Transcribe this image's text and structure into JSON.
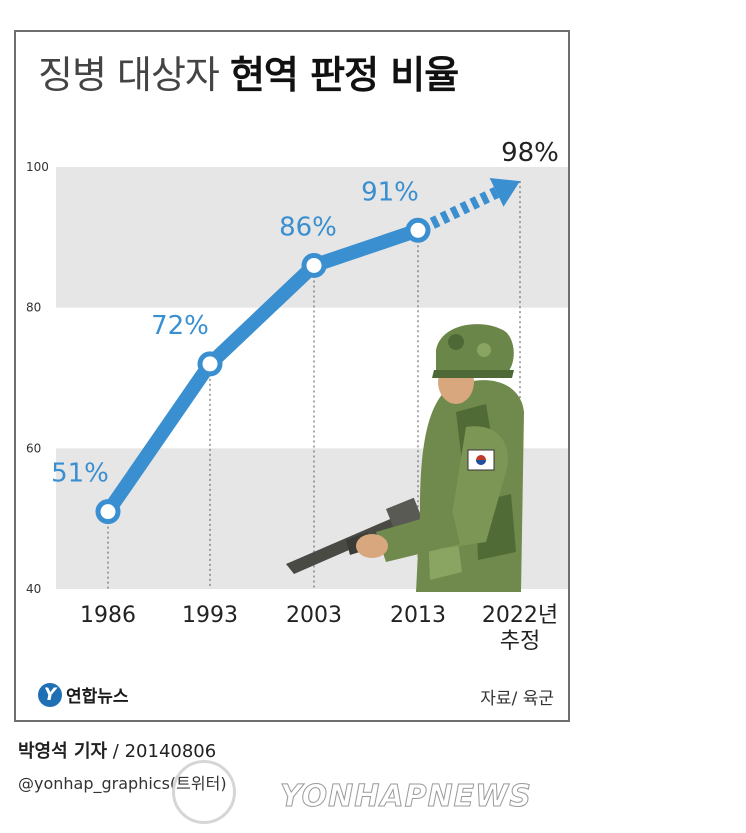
{
  "title_light": "징병 대상자 ",
  "title_bold": "현역 판정 비율",
  "chart_data": {
    "type": "line",
    "x": [
      "1986",
      "1993",
      "2003",
      "2013",
      "2022년 추정"
    ],
    "y": [
      51,
      72,
      86,
      91,
      98
    ],
    "data_labels": [
      "51%",
      "72%",
      "86%",
      "91%",
      "98%"
    ],
    "projected_from_index": 3,
    "ylim": [
      40,
      100
    ],
    "yticks": [
      40,
      60,
      80,
      100
    ],
    "x_tick_lines": [
      [
        "1986"
      ],
      [
        "1993"
      ],
      [
        "2003"
      ],
      [
        "2013"
      ],
      [
        "2022년",
        "추정"
      ]
    ],
    "line_color": "#3a8fd0",
    "band_color": "#e6e6e6"
  },
  "footer": {
    "logo_mark": "Y",
    "logo_text": "연합뉴스",
    "source": "자료/ 육군"
  },
  "byline": {
    "reporter": "박영석 기자",
    "date": " / 20140806"
  },
  "handle": "@yonhap_graphics(트위터)",
  "watermark": "YONHAPNEWS"
}
